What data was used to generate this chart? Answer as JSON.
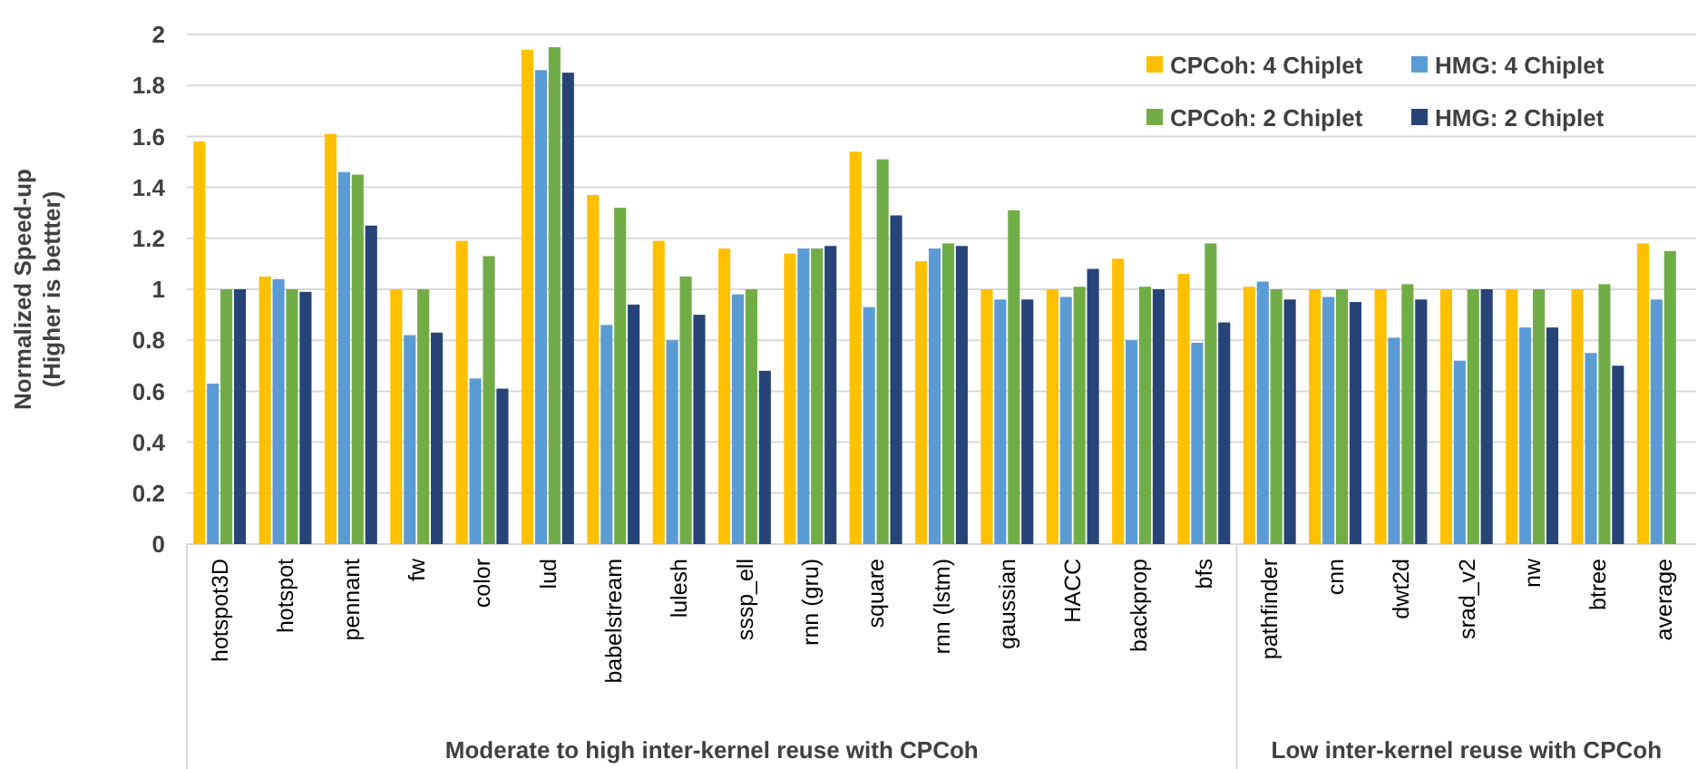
{
  "chart_data": {
    "type": "bar",
    "ylabel": "Normalized Speed-up\n(Higher is bettter)",
    "categories": [
      "hotspot3D",
      "hotspot",
      "pennant",
      "fw",
      "color",
      "lud",
      "babelstream",
      "lulesh",
      "sssp_ell",
      "rnn (gru)",
      "square",
      "rnn (lstm)",
      "gaussian",
      "HACC",
      "backprop",
      "bfs",
      "pathfinder",
      "cnn",
      "dwt2d",
      "srad_v2",
      "nw",
      "btree",
      "average"
    ],
    "series": [
      {
        "name": "CPCoh: 4 Chiplet",
        "color": "#ffc000",
        "values": [
          1.58,
          1.05,
          1.61,
          1.0,
          1.19,
          1.94,
          1.37,
          1.19,
          1.16,
          1.14,
          1.54,
          1.11,
          1.0,
          1.0,
          1.12,
          1.06,
          1.01,
          1.0,
          1.0,
          1.0,
          1.0,
          1.0,
          1.18
        ]
      },
      {
        "name": "HMG: 4 Chiplet",
        "color": "#5b9bd5",
        "values": [
          0.63,
          1.04,
          1.46,
          0.82,
          0.65,
          1.86,
          0.86,
          0.8,
          0.98,
          1.16,
          0.93,
          1.16,
          0.96,
          0.97,
          0.8,
          0.79,
          1.03,
          0.97,
          0.81,
          0.72,
          0.85,
          0.75,
          0.96
        ]
      },
      {
        "name": "CPCoh: 2 Chiplet",
        "color": "#70ad47",
        "values": [
          1.0,
          1.0,
          1.45,
          1.0,
          1.13,
          1.95,
          1.32,
          1.05,
          1.0,
          1.16,
          1.51,
          1.18,
          1.31,
          1.01,
          1.01,
          1.18,
          1.0,
          1.0,
          1.02,
          1.0,
          1.0,
          1.02,
          1.15
        ]
      },
      {
        "name": "HMG: 2 Chiplet",
        "color": "#264478",
        "values": [
          1.0,
          0.99,
          1.25,
          0.83,
          0.61,
          1.85,
          0.94,
          0.9,
          0.68,
          1.17,
          1.29,
          1.17,
          0.96,
          1.08,
          1.0,
          0.87,
          0.96,
          0.95,
          0.96,
          1.0,
          0.85,
          0.7,
          null
        ]
      }
    ],
    "ylim": [
      0,
      2
    ],
    "yticks": [
      0,
      0.2,
      0.4,
      0.6,
      0.8,
      1,
      1.2,
      1.4,
      1.6,
      1.8,
      2
    ],
    "grid": "y",
    "legend": "top right",
    "annotations": [
      "Moderate to high inter-kernel reuse with CPCoh",
      "Low inter-kernel reuse with CPCoh"
    ]
  }
}
